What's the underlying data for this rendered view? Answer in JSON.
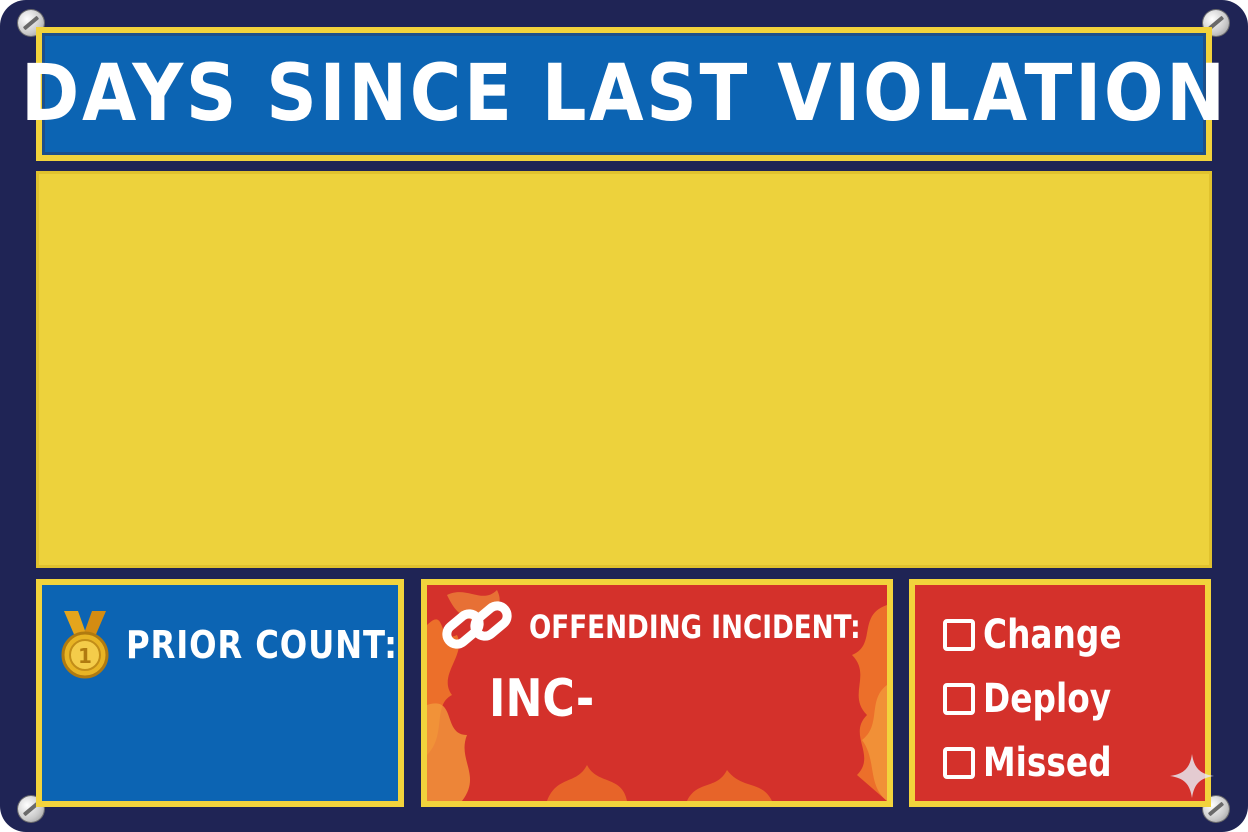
{
  "header": {
    "title": "DAYS SINCE LAST VIOLATION"
  },
  "day_counter": {
    "value": ""
  },
  "prior_count": {
    "label": "PRIOR COUNT:",
    "value": ""
  },
  "offending_incident": {
    "label": "OFFENDING INCIDENT:",
    "value": "INC-"
  },
  "checklist": {
    "items": [
      {
        "label": "Change",
        "checked": false
      },
      {
        "label": "Deploy",
        "checked": false
      },
      {
        "label": "Missed",
        "checked": false
      }
    ]
  },
  "icons": {
    "medal": "medal-icon",
    "link": "link-icon",
    "screw": "screw-icon",
    "sparkle": "sparkle-icon"
  },
  "colors": {
    "frame": "#1f2455",
    "banner_blue": "#0c64b3",
    "panel_yellow": "#edd23c",
    "trim_yellow": "#f2d33c",
    "alert_red": "#d4312b",
    "flame_orange": "#f07a2a"
  }
}
